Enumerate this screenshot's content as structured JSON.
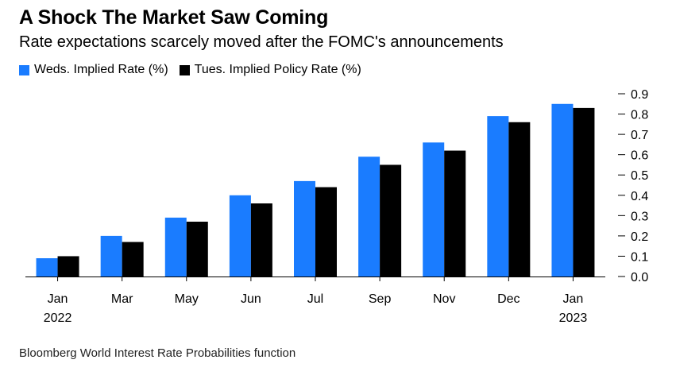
{
  "title": "A Shock The Market Saw Coming",
  "subtitle": "Rate expectations scarcely moved after the FOMC's announcements",
  "source": "Bloomberg World Interest Rate Probabilities function",
  "colors": {
    "series_1": "#1a7cff",
    "series_2": "#000000"
  },
  "chart_data": {
    "type": "bar",
    "categories": [
      "Jan",
      "Mar",
      "May",
      "Jun",
      "Jul",
      "Sep",
      "Nov",
      "Dec",
      "Jan"
    ],
    "category_sublabels": [
      "2022",
      "",
      "",
      "",
      "",
      "",
      "",
      "",
      "2023"
    ],
    "series": [
      {
        "name": "Weds. Implied Rate (%)",
        "values": [
          0.09,
          0.2,
          0.29,
          0.4,
          0.47,
          0.59,
          0.66,
          0.79,
          0.85
        ]
      },
      {
        "name": "Tues. Implied Policy Rate (%)",
        "values": [
          0.1,
          0.17,
          0.27,
          0.36,
          0.44,
          0.55,
          0.62,
          0.76,
          0.83
        ]
      }
    ],
    "y_ticks": [
      "0.0",
      "0.1",
      "0.2",
      "0.3",
      "0.4",
      "0.5",
      "0.6",
      "0.7",
      "0.8",
      "0.9"
    ],
    "ylim": [
      0,
      0.9
    ],
    "y_axis_side": "right",
    "legend_position": "top-left",
    "grid": false
  }
}
